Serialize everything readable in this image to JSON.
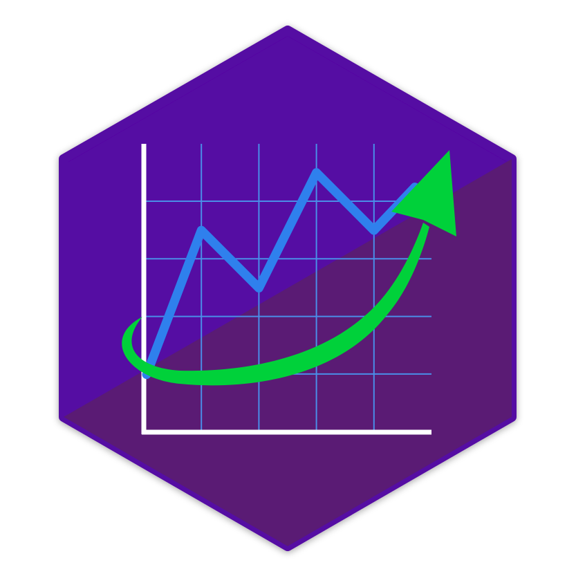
{
  "logo": {
    "name": "growth-chart-hex-sticker",
    "icon": "trending-up-chart-icon",
    "colors": {
      "hex_top": "#5507a3",
      "hex_bottom": "#5a1b74",
      "axes": "#ffffff",
      "grid": "#4a8ee8",
      "line": "#2f80ed",
      "arrow": "#00d13a"
    }
  },
  "chart_data": {
    "type": "line",
    "title": "",
    "xlabel": "",
    "ylabel": "",
    "x": [
      0,
      1,
      2,
      3,
      4,
      5
    ],
    "values": [
      0.5,
      3,
      2,
      4,
      3,
      3.75
    ],
    "xlim": [
      0,
      5
    ],
    "ylim": [
      -0.5,
      4.5
    ],
    "grid": true,
    "trend_arrow": "up-right"
  }
}
